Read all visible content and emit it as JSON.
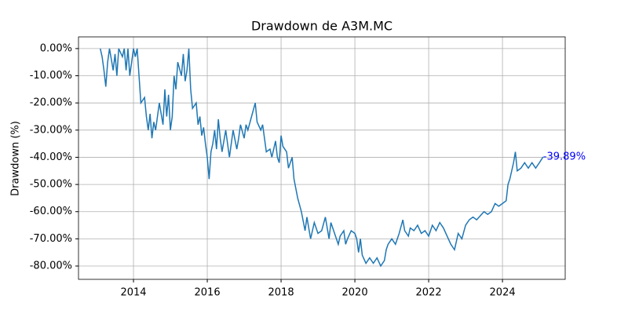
{
  "chart_data": {
    "type": "line",
    "title": "Drawdown de A3M.MC",
    "ylabel": "Drawdown (%)",
    "grid": true,
    "x": [
      2013.1,
      2013.15,
      2013.2,
      2013.25,
      2013.3,
      2013.35,
      2013.45,
      2013.5,
      2013.55,
      2013.6,
      2013.7,
      2013.75,
      2013.8,
      2013.85,
      2013.9,
      2013.95,
      2014.0,
      2014.05,
      2014.1,
      2014.15,
      2014.2,
      2014.3,
      2014.35,
      2014.4,
      2014.45,
      2014.5,
      2014.55,
      2014.6,
      2014.7,
      2014.8,
      2014.85,
      2014.9,
      2014.95,
      2015.0,
      2015.05,
      2015.1,
      2015.15,
      2015.2,
      2015.3,
      2015.35,
      2015.4,
      2015.45,
      2015.5,
      2015.55,
      2015.6,
      2015.7,
      2015.75,
      2015.8,
      2015.85,
      2015.9,
      2015.95,
      2016.0,
      2016.05,
      2016.1,
      2016.15,
      2016.2,
      2016.25,
      2016.3,
      2016.35,
      2016.4,
      2016.5,
      2016.6,
      2016.65,
      2016.7,
      2016.8,
      2016.85,
      2016.9,
      2017.0,
      2017.05,
      2017.1,
      2017.2,
      2017.3,
      2017.35,
      2017.45,
      2017.5,
      2017.6,
      2017.7,
      2017.75,
      2017.8,
      2017.85,
      2017.9,
      2017.95,
      2018.0,
      2018.05,
      2018.15,
      2018.2,
      2018.3,
      2018.35,
      2018.45,
      2018.55,
      2018.65,
      2018.7,
      2018.8,
      2018.9,
      2019.0,
      2019.1,
      2019.2,
      2019.3,
      2019.35,
      2019.45,
      2019.55,
      2019.6,
      2019.7,
      2019.75,
      2019.8,
      2019.9,
      2020.0,
      2020.05,
      2020.1,
      2020.15,
      2020.2,
      2020.3,
      2020.4,
      2020.5,
      2020.6,
      2020.7,
      2020.8,
      2020.85,
      2020.9,
      2021.0,
      2021.1,
      2021.2,
      2021.3,
      2021.35,
      2021.45,
      2021.5,
      2021.6,
      2021.7,
      2021.8,
      2021.9,
      2022.0,
      2022.1,
      2022.2,
      2022.3,
      2022.4,
      2022.5,
      2022.6,
      2022.7,
      2022.8,
      2022.9,
      2023.0,
      2023.1,
      2023.2,
      2023.3,
      2023.5,
      2023.6,
      2023.7,
      2023.8,
      2023.9,
      2024.0,
      2024.1,
      2024.15,
      2024.2,
      2024.3,
      2024.35,
      2024.4,
      2024.5,
      2024.6,
      2024.7,
      2024.8,
      2024.9,
      2025.0,
      2025.1
    ],
    "series": [
      {
        "color": "#1f77b4",
        "values": [
          0,
          -3,
          -8,
          -14,
          -5,
          0,
          -8,
          -2,
          -10,
          0,
          -3,
          0,
          -8,
          0,
          -10,
          -5,
          0,
          -3,
          0,
          -10,
          -20,
          -18,
          -25,
          -30,
          -24,
          -33,
          -27,
          -30,
          -20,
          -28,
          -15,
          -25,
          -17,
          -30,
          -25,
          -10,
          -15,
          -5,
          -10,
          -2,
          -12,
          -8,
          0,
          -15,
          -22,
          -20,
          -28,
          -25,
          -32,
          -29,
          -35,
          -40,
          -48,
          -38,
          -35,
          -30,
          -37,
          -26,
          -33,
          -38,
          -30,
          -40,
          -35,
          -30,
          -37,
          -33,
          -28,
          -33,
          -28,
          -30,
          -25,
          -20,
          -27,
          -30,
          -28,
          -38,
          -37,
          -40,
          -37,
          -34,
          -40,
          -42,
          -32,
          -36,
          -38,
          -44,
          -40,
          -48,
          -55,
          -60,
          -67,
          -62,
          -70,
          -64,
          -68,
          -67,
          -62,
          -70,
          -64,
          -68,
          -72,
          -69,
          -67,
          -72,
          -70,
          -67,
          -68,
          -70,
          -75,
          -70,
          -76,
          -79,
          -77,
          -79,
          -77,
          -80,
          -78,
          -74,
          -72,
          -70,
          -72,
          -68,
          -63,
          -67,
          -69,
          -66,
          -67,
          -65,
          -68,
          -67,
          -69,
          -65,
          -67,
          -64,
          -66,
          -69,
          -72,
          -74,
          -68,
          -70,
          -65,
          -63,
          -62,
          -63,
          -60,
          -61,
          -60,
          -57,
          -58,
          -57,
          -56,
          -50,
          -48,
          -42,
          -38,
          -45,
          -44,
          -42,
          -44,
          -42,
          -44,
          -42,
          -39.89
        ]
      }
    ],
    "annotation": {
      "x": 2025.1,
      "y": -39.89,
      "label": "-39.89%",
      "color": "#0000ff"
    },
    "xlim": [
      2012.51,
      2025.7
    ],
    "xticks": [
      2014,
      2016,
      2018,
      2020,
      2022,
      2024
    ],
    "ylim": [
      -84.9,
      4.3
    ],
    "yticks": [
      {
        "value": 0,
        "label": "0.00%"
      },
      {
        "value": -10,
        "label": "-10.00%"
      },
      {
        "value": -20,
        "label": "-20.00%"
      },
      {
        "value": -30,
        "label": "-30.00%"
      },
      {
        "value": -40,
        "label": "-40.00%"
      },
      {
        "value": -50,
        "label": "-50.00%"
      },
      {
        "value": -60,
        "label": "-60.00%"
      },
      {
        "value": -70,
        "label": "-70.00%"
      },
      {
        "value": -80,
        "label": "-80.00%"
      }
    ]
  }
}
